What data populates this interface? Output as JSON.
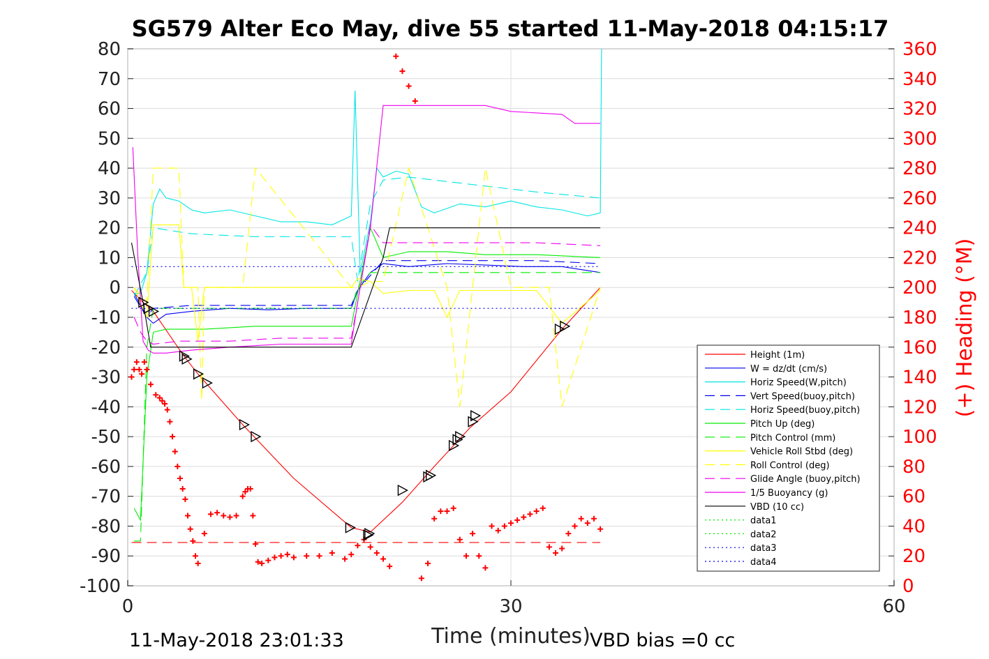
{
  "chart_data": {
    "type": "line",
    "title": "SG579 Alter Eco May, dive 55 started 11-May-2018 04:15:17",
    "xlabel": "Time (minutes)",
    "ylabel_right": "(+) Heading (°M)",
    "xlim": [
      0,
      60
    ],
    "ylim": [
      -100,
      80
    ],
    "ylim_right": [
      0,
      360
    ],
    "x_ticks": [
      "0",
      "30",
      "60"
    ],
    "y_ticks": [
      "80",
      "70",
      "60",
      "50",
      "40",
      "30",
      "20",
      "10",
      "0",
      "-10",
      "-20",
      "-30",
      "-40",
      "-50",
      "-60",
      "-70",
      "-80",
      "-90",
      "-100"
    ],
    "y_right_ticks": [
      "360",
      "340",
      "320",
      "300",
      "280",
      "260",
      "240",
      "220",
      "200",
      "180",
      "160",
      "140",
      "120",
      "100",
      "80",
      "60",
      "40",
      "20",
      "0"
    ],
    "grid": true,
    "legend_position": "lower-right",
    "footer_left": "11-May-2018 23:01:33",
    "footer_right": "VBD bias =0 cc",
    "colors": {
      "red": "#ff0000",
      "blue": "#0000ee",
      "cyan": "#00e5e5",
      "green": "#00ee00",
      "yellow": "#ffff00",
      "magenta": "#ee00ee",
      "black": "#000000"
    },
    "series": [
      {
        "name": "Height (1m)",
        "style": "solid",
        "color": "#ff0000",
        "x": [
          0.3,
          1.2,
          2,
          4.4,
          5.5,
          9,
          13,
          17.5,
          19,
          21.5,
          24,
          26.8,
          30,
          34,
          37
        ],
        "y": [
          -1,
          -5,
          -8,
          -23,
          -29,
          -46,
          -64,
          -80.5,
          -82,
          -72,
          -60,
          -47,
          -35,
          -14,
          0
        ]
      },
      {
        "name": "W = dz/dt (cm/s)",
        "style": "solid",
        "color": "#0000ee",
        "x": [
          0.5,
          1,
          1.5,
          2,
          3,
          5,
          8,
          11,
          14,
          17.5,
          18,
          19,
          20,
          22,
          25,
          28,
          31,
          34,
          37
        ],
        "y": [
          -2,
          -6,
          -10,
          -12,
          -9,
          -8,
          -7,
          -7.5,
          -7,
          -7,
          -1,
          5,
          8,
          7,
          8,
          7.5,
          7,
          7,
          5
        ]
      },
      {
        "name": "Horiz Speed(W,pitch)",
        "style": "solid",
        "color": "#00e5e5",
        "x": [
          0.5,
          1,
          1.5,
          2,
          2.5,
          3,
          4,
          5,
          6,
          8,
          10,
          12,
          14,
          16,
          17.5,
          17.8,
          18.2,
          19,
          19.5,
          20,
          21,
          22,
          23,
          24,
          26,
          28,
          30,
          32,
          34,
          36,
          37,
          37.1
        ],
        "y": [
          -2,
          -2,
          5,
          28,
          33,
          30,
          29,
          26,
          25,
          26,
          24,
          22,
          22,
          21,
          24,
          66,
          5,
          22,
          40,
          37,
          39,
          38,
          27,
          25,
          28,
          27,
          29,
          27,
          26,
          24,
          25,
          80
        ]
      },
      {
        "name": "Vert Speed(buoy,pitch)",
        "style": "dash",
        "color": "#0000ee",
        "x": [
          0.5,
          1.5,
          2,
          5,
          10,
          17.5,
          18,
          19,
          20,
          24,
          28,
          32,
          37
        ],
        "y": [
          -3,
          -10,
          -7,
          -6,
          -6,
          -6,
          -1,
          4,
          9,
          9,
          9,
          9,
          8
        ]
      },
      {
        "name": "Horiz Speed(buoy,pitch)",
        "style": "dash",
        "color": "#00e5e5",
        "x": [
          0.5,
          1.5,
          2,
          5,
          10,
          17.5,
          18,
          19,
          20,
          22,
          24,
          28,
          32,
          37
        ],
        "y": [
          -3,
          5,
          20,
          18,
          17,
          17,
          2,
          28,
          36,
          37,
          36,
          34,
          32,
          30
        ]
      },
      {
        "name": "Pitch Up (deg)",
        "style": "solid",
        "color": "#00ee00",
        "x": [
          0.5,
          1,
          1.5,
          2,
          3,
          6,
          10,
          14,
          17.5,
          18,
          19,
          20,
          22,
          25,
          28,
          32,
          37
        ],
        "y": [
          -74,
          -78,
          -30,
          -15,
          -14,
          -14,
          -13,
          -13,
          -13,
          -2,
          20,
          10,
          12,
          12,
          11,
          11,
          10
        ]
      },
      {
        "name": "Pitch Control (mm)",
        "style": "dash",
        "color": "#00ee00",
        "x": [
          0.5,
          1,
          1.5,
          2,
          6,
          10,
          17.5,
          18,
          19,
          20,
          25,
          30,
          37
        ],
        "y": [
          -85,
          -85,
          -20,
          -7,
          -7,
          -7,
          -7,
          0,
          5,
          5,
          5,
          5,
          5
        ]
      },
      {
        "name": "Vehicle Roll Stbd (deg)",
        "style": "solid",
        "color": "#ffff00",
        "x": [
          0.5,
          1,
          1.5,
          2,
          4,
          4.4,
          5,
          5.5,
          6,
          9,
          13,
          17.5,
          18,
          19,
          20,
          22,
          24,
          25,
          26,
          28,
          30,
          32,
          34,
          37
        ],
        "y": [
          0,
          -5,
          -10,
          21,
          21,
          0,
          0,
          -18,
          0,
          0,
          0,
          0,
          3,
          2,
          -2,
          -1,
          -1,
          -10,
          -1,
          -1,
          -1,
          -1,
          -12,
          -1
        ]
      },
      {
        "name": "Roll Control (deg)",
        "style": "dash",
        "color": "#ffff00",
        "x": [
          0.5,
          1.5,
          2,
          4,
          4.4,
          5.5,
          5.8,
          6,
          9,
          10,
          17.5,
          18,
          19,
          20,
          22,
          25,
          26,
          28,
          30,
          33,
          34,
          37
        ],
        "y": [
          0,
          -5,
          40,
          40,
          0,
          0,
          -38,
          0,
          0,
          40,
          0,
          0,
          2,
          2,
          40,
          0,
          -40,
          40,
          0,
          0,
          -40,
          0
        ]
      },
      {
        "name": "Glide Angle (buoy,pitch)",
        "style": "dash",
        "color": "#ee00ee",
        "x": [
          0.5,
          1,
          1.5,
          2,
          4,
          8,
          12,
          17.5,
          18,
          19,
          20,
          22,
          25,
          28,
          32,
          37
        ],
        "y": [
          -10,
          -15,
          -18,
          -19,
          -18,
          -18,
          -17,
          -17,
          -5,
          21,
          15,
          15,
          15,
          15,
          15,
          14
        ]
      },
      {
        "name": "1/5 Buoyancy (g)",
        "style": "solid",
        "color": "#ee00ee",
        "x": [
          0.4,
          0.8,
          1.2,
          1.6,
          2,
          3,
          5,
          8,
          12,
          17.5,
          18,
          19,
          20,
          24,
          28,
          30,
          34,
          35,
          37
        ],
        "y": [
          47,
          10,
          -18,
          -21,
          -22,
          -22,
          -21,
          -20,
          -19,
          -19,
          -5,
          20,
          61,
          61,
          61,
          59,
          58,
          55,
          55
        ]
      },
      {
        "name": "VBD (10 cc)",
        "style": "solid",
        "color": "#000000",
        "x": [
          0.3,
          1.2,
          1.8,
          5,
          10,
          17.5,
          20,
          20.5,
          37
        ],
        "y": [
          15,
          -5,
          -20,
          -20,
          -20,
          -20,
          10,
          20,
          20
        ]
      },
      {
        "name": "data1",
        "style": "dot",
        "color": "#00ee00",
        "x": [],
        "y": []
      },
      {
        "name": "data2",
        "style": "dot",
        "color": "#00ee00",
        "x": [],
        "y": []
      },
      {
        "name": "data3",
        "style": "dot",
        "color": "#0000ee",
        "x": [
          0.3,
          37
        ],
        "y": [
          7,
          7
        ]
      },
      {
        "name": "data4",
        "style": "dot",
        "color": "#0000ee",
        "x": [
          0.3,
          37
        ],
        "y": [
          -7,
          -7
        ]
      }
    ],
    "reference_lines": [
      {
        "axis": "right",
        "style": "dash",
        "color": "#ff0000",
        "y": 29,
        "x": [
          0.3,
          37
        ]
      }
    ],
    "heading_points": {
      "axis": "right",
      "color": "#ff0000",
      "marker": "+",
      "x": [
        0.3,
        0.5,
        0.7,
        0.9,
        1.1,
        1.3,
        1.5,
        1.8,
        2.2,
        2.5,
        2.7,
        2.9,
        3.1,
        3.3,
        3.5,
        3.7,
        3.9,
        4.1,
        4.3,
        4.5,
        4.7,
        4.9,
        5.1,
        5.3,
        5.5,
        6,
        6.5,
        7,
        7.5,
        8,
        8.5,
        9,
        9.2,
        9.4,
        9.6,
        9.8,
        10,
        10.2,
        10.5,
        11,
        11.5,
        12,
        12.5,
        13,
        14,
        15,
        16,
        17,
        17.5,
        18,
        18.5,
        19,
        19.5,
        20,
        20.5,
        21,
        21.5,
        22,
        22.5,
        23,
        23.5,
        24,
        24.5,
        25,
        25.5,
        26,
        26.5,
        27,
        27.5,
        28,
        28.5,
        29,
        29.5,
        30,
        30.5,
        31,
        31.5,
        32,
        32.5,
        33,
        33.5,
        34,
        34.5,
        35,
        35.5,
        36,
        36.5,
        37
      ],
      "y": [
        140,
        145,
        150,
        145,
        142,
        150,
        145,
        135,
        128,
        126,
        124,
        122,
        118,
        110,
        100,
        90,
        80,
        72,
        65,
        58,
        47,
        38,
        30,
        20,
        15,
        35,
        48,
        49,
        47,
        46,
        47,
        60,
        63,
        65,
        65,
        47,
        28,
        16,
        15,
        17,
        19,
        20,
        21,
        19,
        20,
        20,
        22,
        18,
        21,
        27,
        31,
        26,
        22,
        18,
        13,
        355,
        345,
        335,
        325,
        5,
        15,
        45,
        50,
        50,
        52,
        31,
        20,
        35,
        20,
        12,
        40,
        37,
        40,
        42,
        44,
        46,
        48,
        50,
        52,
        26,
        22,
        25,
        35,
        40,
        45,
        42,
        45,
        38
      ]
    },
    "triangle_markers": {
      "color": "#000000",
      "x": [
        1.2,
        1.6,
        2,
        4.4,
        4.6,
        5.5,
        6.2,
        9.1,
        10,
        17.4,
        18.8,
        18.9,
        21.5,
        23.5,
        23.7,
        25.5,
        25.8,
        26,
        27,
        27.2,
        33.8,
        34.2
      ],
      "y": [
        -5,
        -7,
        -8,
        -23,
        -24,
        -29,
        -32,
        -46,
        -50,
        -80.5,
        -83,
        -82.5,
        -68,
        -63.5,
        -63,
        -53,
        -51,
        -50,
        -45,
        -43,
        -14,
        -13
      ]
    }
  }
}
